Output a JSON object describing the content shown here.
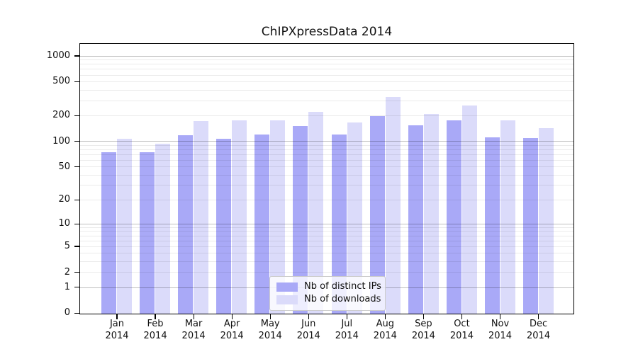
{
  "figure": {
    "title": "ChIPXpressData 2014"
  },
  "chart_data": {
    "type": "bar",
    "title": "ChIPXpressData 2014",
    "categories": [
      "Jan",
      "Feb",
      "Mar",
      "Apr",
      "May",
      "Jun",
      "Jul",
      "Aug",
      "Sep",
      "Oct",
      "Nov",
      "Dec"
    ],
    "x_year_label": "2014",
    "series": [
      {
        "name": "Nb of distinct IPs",
        "color": "#a9a9f7",
        "values": [
          75,
          75,
          120,
          108,
          123,
          153,
          123,
          200,
          158,
          180,
          112,
          111
        ]
      },
      {
        "name": "Nb of downloads",
        "color": "#dbdbfa",
        "values": [
          108,
          95,
          175,
          180,
          180,
          227,
          168,
          335,
          212,
          265,
          178,
          145
        ]
      }
    ],
    "yscale": "log10(value+1)",
    "yticks": [
      0,
      1,
      2,
      5,
      10,
      20,
      50,
      100,
      200,
      500,
      1000
    ],
    "ylim": [
      0,
      1376
    ],
    "xlabel": "",
    "ylabel": "",
    "grid": "horizontal log gridlines, majors at 1/10/100/1000, drawn above bars",
    "legend_position": "inside bottom-center"
  },
  "legend": {
    "items": [
      {
        "label": "Nb of distinct IPs"
      },
      {
        "label": "Nb of downloads"
      }
    ]
  },
  "colors": {
    "bar_distinct_ips": "#a9a9f7",
    "bar_downloads": "#dbdbfa",
    "grid_major": "rgba(0,0,0,0.25)",
    "grid_minor": "rgba(0,0,0,0.08)",
    "axis": "#000000",
    "legend_border": "#cccccc",
    "background": "#ffffff"
  }
}
